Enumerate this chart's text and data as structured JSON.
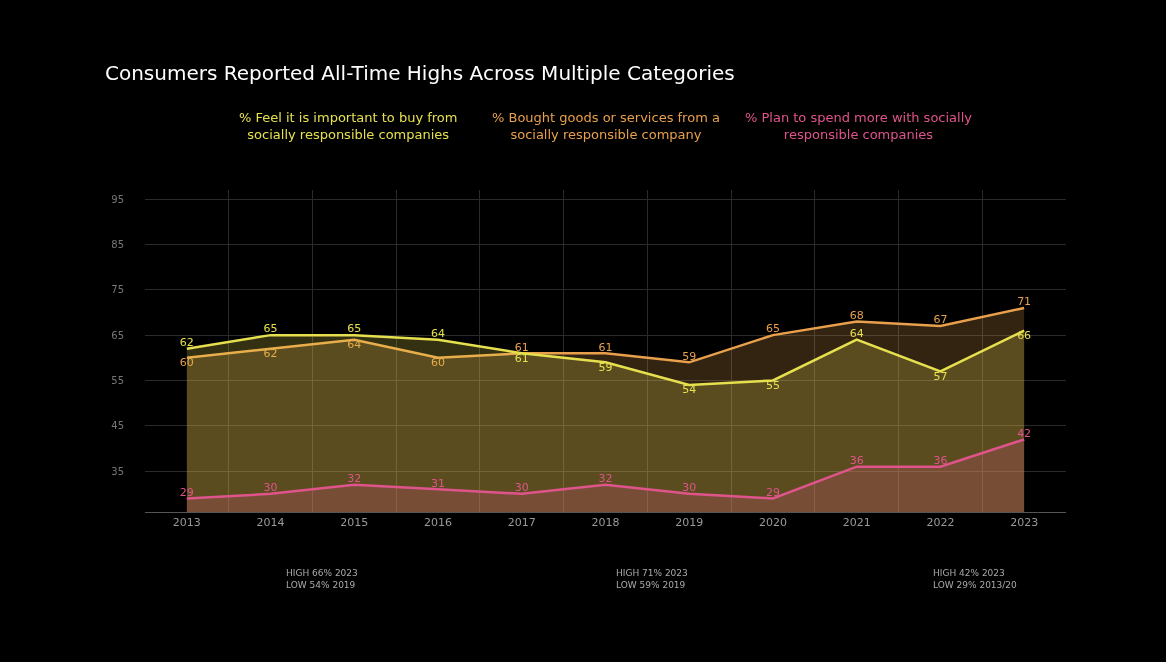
{
  "chart_data": {
    "type": "area",
    "title": "Consumers Reported All-Time Highs Across Multiple Categories",
    "categories": [
      "2013",
      "2014",
      "2015",
      "2016",
      "2017",
      "2018",
      "2019",
      "2020",
      "2021",
      "2022",
      "2023"
    ],
    "series": [
      {
        "name": "% Bought goods or services from a socially responsible company",
        "color": "#e9a04c",
        "values": [
          60,
          62,
          64,
          60,
          61,
          61,
          59,
          65,
          68,
          67,
          71
        ]
      },
      {
        "name": "% Feel it is important to buy from socially responsible companies",
        "color": "#e6e04e",
        "values": [
          62,
          65,
          65,
          64,
          61,
          59,
          54,
          55,
          64,
          57,
          66
        ]
      },
      {
        "name": "% Plan to spend more with socially responsible companies",
        "color": "#e0548c",
        "values": [
          29,
          30,
          32,
          31,
          30,
          32,
          30,
          29,
          36,
          36,
          42
        ]
      }
    ],
    "ylim": [
      26,
      97
    ],
    "yticks": [
      35,
      45,
      55,
      65,
      75,
      85,
      95
    ],
    "grid": true,
    "legend": false,
    "data_labels": true,
    "annotations": [
      "HIGH 66% 2023\nLOW 54% 2019",
      "HIGH 71% 2023\nLOW 59% 2019",
      "HIGH 42% 2023\nLOW 29% 2013/20"
    ]
  }
}
